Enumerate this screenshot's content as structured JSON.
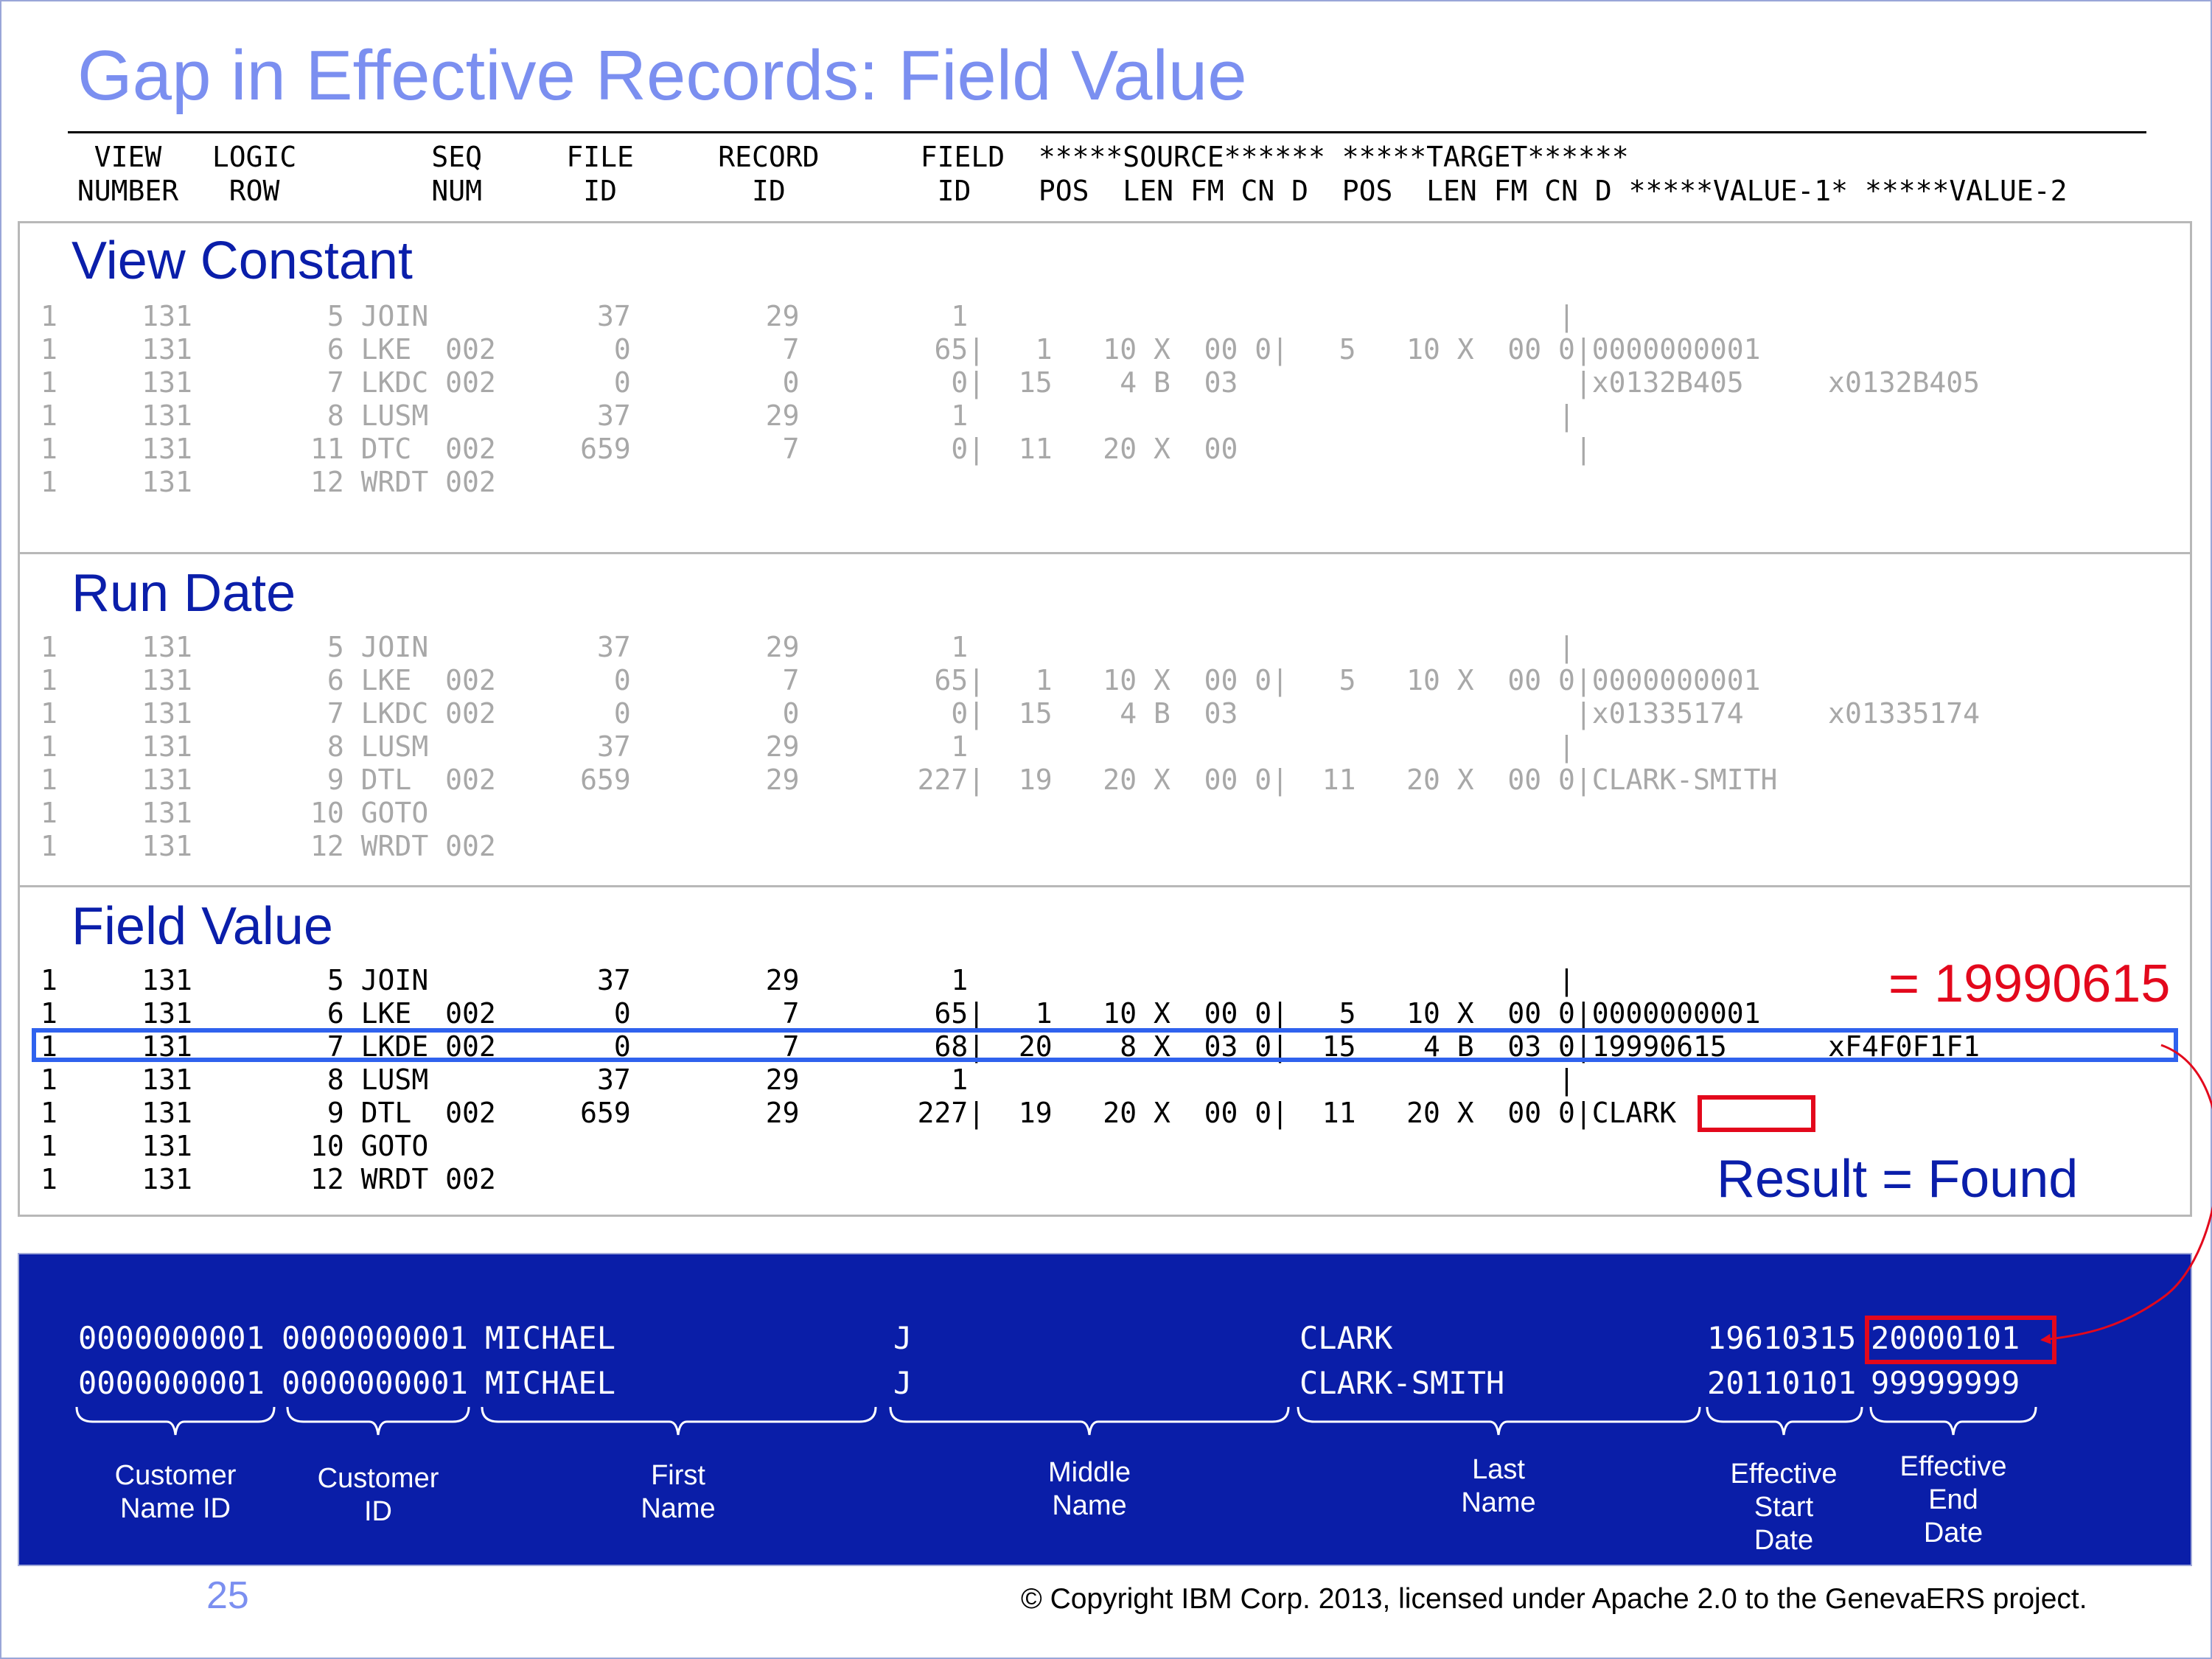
{
  "title": "Gap in Effective Records: Field Value",
  "header_lines": [
    "  VIEW   LOGIC        SEQ     FILE     RECORD      FIELD  *****SOURCE****** *****TARGET******",
    " NUMBER   ROW         NUM      ID        ID         ID    POS  LEN FM CN D  POS  LEN FM CN D *****VALUE-1* *****VALUE-2"
  ],
  "sections": [
    {
      "title": "View Constant",
      "rows": [
        "1     131        5 JOIN          37        29         1                                   |",
        "1     131        6 LKE  002       0         7        65|   1   10 X  00 0|   5   10 X  00 0|0000000001",
        "1     131        7 LKDC 002       0         0         0|  15    4 B  03                    |x0132B405     x0132B405",
        "1     131        8 LUSM          37        29         1                                   |",
        "1     131       11 DTC  002     659         7         0|  11   20 X  00                    |",
        "1     131       12 WRDT 002"
      ]
    },
    {
      "title": "Run Date",
      "rows": [
        "1     131        5 JOIN          37        29         1                                   |",
        "1     131        6 LKE  002       0         7        65|   1   10 X  00 0|   5   10 X  00 0|0000000001",
        "1     131        7 LKDC 002       0         0         0|  15    4 B  03                    |x01335174     x01335174",
        "1     131        8 LUSM          37        29         1                                   |",
        "1     131        9 DTL  002     659        29       227|  19   20 X  00 0|  11   20 X  00 0|CLARK-SMITH",
        "1     131       10 GOTO",
        "1     131       12 WRDT 002"
      ]
    },
    {
      "title": "Field  Value",
      "rows": [
        "1     131        5 JOIN          37        29         1                                   |",
        "1     131        6 LKE  002       0         7        65|   1   10 X  00 0|   5   10 X  00 0|0000000001",
        "1     131        7 LKDE 002       0         7        68|  20    8 X  03 0|  15    4 B  03 0|19990615      xF4F0F1F1",
        "1     131        8 LUSM          37        29         1                                   |",
        "1     131        9 DTL  002     659        29       227|  19   20 X  00 0|  11   20 X  00 0|CLARK",
        "1     131       10 GOTO",
        "1     131       12 WRDT 002"
      ],
      "callout_value": "= 19990615",
      "result": "Result = Found"
    }
  ],
  "records": [
    {
      "customer_name_id": "0000000001",
      "customer_id": "0000000001",
      "first_name": "MICHAEL",
      "middle_name": "J",
      "last_name": "CLARK",
      "start_date": "19610315",
      "end_date": "20000101"
    },
    {
      "customer_name_id": "0000000001",
      "customer_id": "0000000001",
      "first_name": "MICHAEL",
      "middle_name": "J",
      "last_name": "CLARK-SMITH",
      "start_date": "20110101",
      "end_date": "99999999"
    }
  ],
  "field_labels": {
    "customer_name_id": "Customer\nName ID",
    "customer_id": "Customer\nID",
    "first_name": "First\nName",
    "middle_name": "Middle\nName",
    "last_name": "Last\nName",
    "start_date": "Effective\nStart\nDate",
    "end_date": "Effective\nEnd\nDate"
  },
  "page_number": "25",
  "copyright": "© Copyright IBM Corp. 2013, licensed under Apache 2.0 to the GenevaERS project.",
  "colors": {
    "title": "#7b8ff0",
    "section_title": "#0a1eaa",
    "highlight_blue": "#2f62ee",
    "highlight_red": "#e3081c",
    "record_panel": "#0a1ea8"
  }
}
